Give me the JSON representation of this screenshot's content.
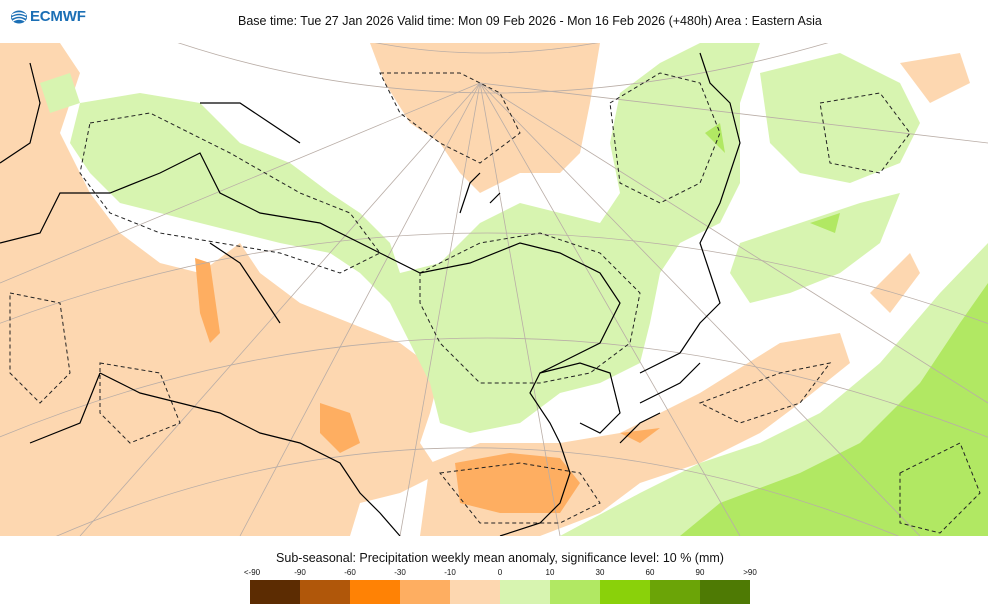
{
  "brand": {
    "name": "ECMWF",
    "color": "#1b6fb5",
    "icon": "ecmwf-logo-icon"
  },
  "title": "Base time: Tue 27 Jan 2026 Valid time: Mon 09 Feb 2026 - Mon 16 Feb 2026 (+480h) Area : Eastern Asia",
  "legend": {
    "title": "Sub-seasonal: Precipitation weekly mean anomaly, significance level: 10 % (mm)",
    "tick_labels": [
      "<-90",
      "-90",
      "-60",
      "-30",
      "-10",
      "0",
      "10",
      "30",
      "60",
      "90",
      ">90"
    ],
    "colors": [
      "#5c2c02",
      "#b0570a",
      "#ff8205",
      "#feae61",
      "#fdd7b0",
      "#d7f4b0",
      "#b1e863",
      "#8ad10a",
      "#6ba407",
      "#4e7a04"
    ]
  }
}
